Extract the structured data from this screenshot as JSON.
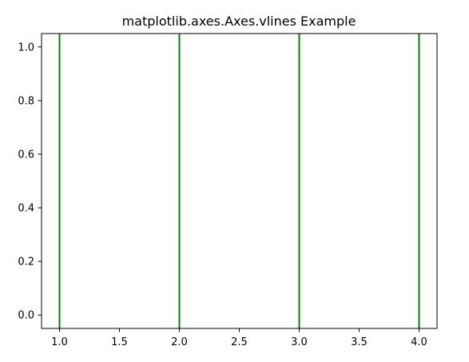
{
  "chart_data": {
    "type": "line",
    "title": "matplotlib.axes.Axes.vlines Example",
    "xlabel": "",
    "ylabel": "",
    "xlim": [
      0.85,
      4.15
    ],
    "ylim": [
      -0.05,
      1.05
    ],
    "grid": false,
    "x_ticks": [
      1.0,
      1.5,
      2.0,
      2.5,
      3.0,
      3.5,
      4.0
    ],
    "x_tick_labels": [
      "1.0",
      "1.5",
      "2.0",
      "2.5",
      "3.0",
      "3.5",
      "4.0"
    ],
    "y_ticks": [
      0.0,
      0.2,
      0.4,
      0.6,
      0.8,
      1.0
    ],
    "y_tick_labels": [
      "0.0",
      "0.2",
      "0.4",
      "0.6",
      "0.8",
      "1.0"
    ],
    "vlines": {
      "x": [
        1,
        2,
        3,
        4
      ],
      "ymin": -0.05,
      "ymax": 1.05,
      "color": "#008000"
    }
  }
}
